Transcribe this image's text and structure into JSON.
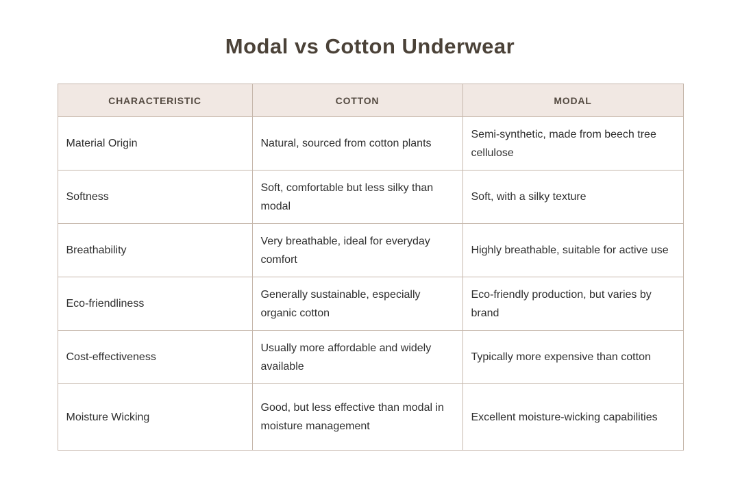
{
  "page": {
    "title": "Modal vs Cotton Underwear"
  },
  "colors": {
    "title_color": "#4b4238",
    "header_background": "#f1e8e3",
    "header_text": "#544a41",
    "border_color": "#c5b6aa",
    "body_text": "#2f2f2f",
    "page_background": "#ffffff"
  },
  "table": {
    "columns": [
      "CHARACTERISTIC",
      "COTTON",
      "MODAL"
    ],
    "rows": [
      {
        "characteristic": "Material Origin",
        "cotton": "Natural, sourced from cotton plants",
        "modal": "Semi-synthetic, made from beech tree cellulose"
      },
      {
        "characteristic": "Softness",
        "cotton": "Soft, comfortable but less silky than modal",
        "modal": "Soft, with a silky texture"
      },
      {
        "characteristic": "Breathability",
        "cotton": "Very breathable, ideal for everyday comfort",
        "modal": "Highly breathable, suitable for active use"
      },
      {
        "characteristic": "Eco-friendliness",
        "cotton": "Generally sustainable, especially organic cotton",
        "modal": "Eco-friendly production, but varies by brand"
      },
      {
        "characteristic": "Cost-effectiveness",
        "cotton": "Usually more affordable and widely available",
        "modal": "Typically more expensive than cotton"
      },
      {
        "characteristic": "Moisture Wicking",
        "cotton": "Good, but less effective than modal in moisture management",
        "modal": "Excellent moisture-wicking capabilities"
      }
    ]
  }
}
